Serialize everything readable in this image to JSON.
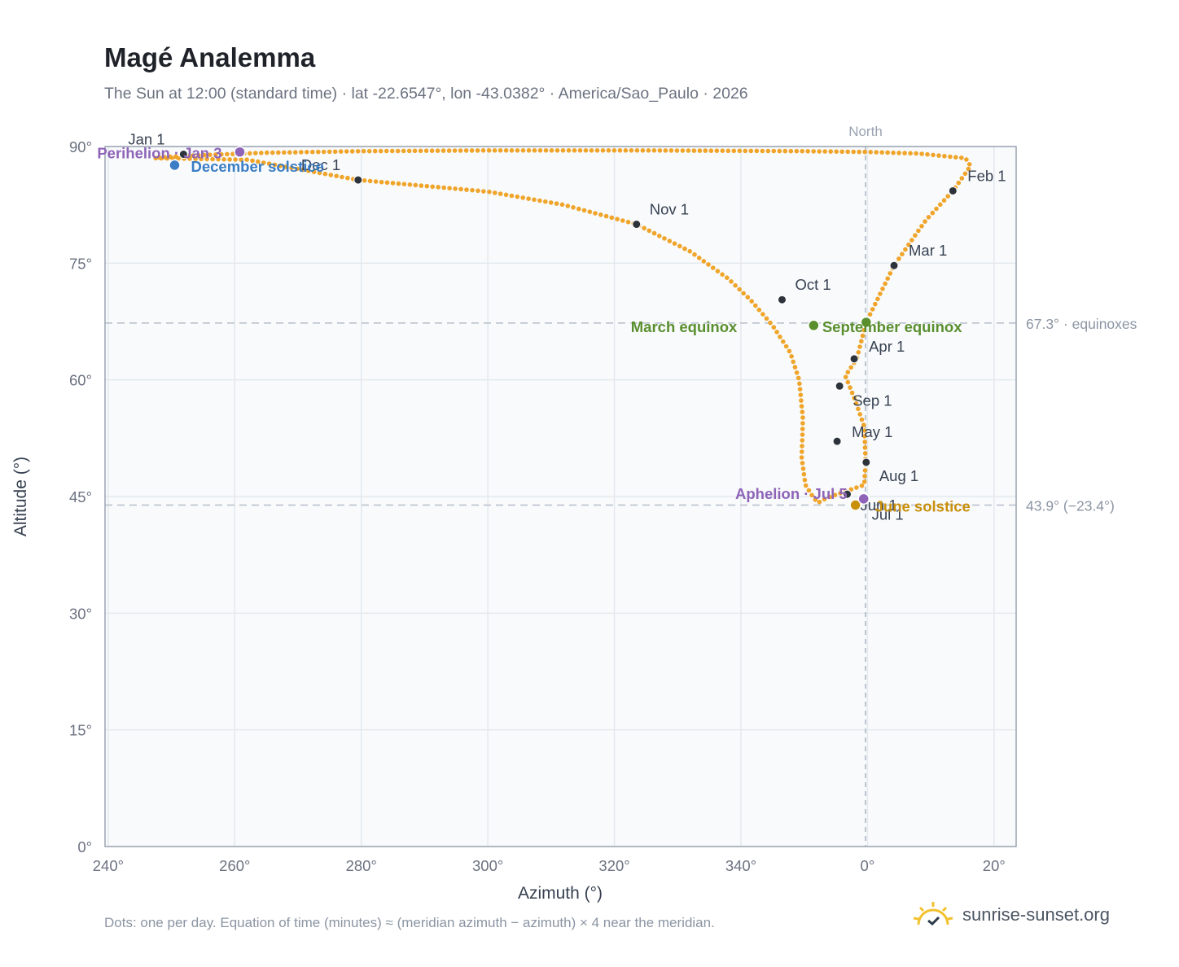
{
  "header": {
    "title": "Magé Analemma",
    "subtitle": "The Sun at 12:00 (standard time) · lat -22.6547°, lon -43.0382° · America/Sao_Paulo · 2026"
  },
  "footer": {
    "note": "Dots: one per day. Equation of time (minutes) ≈ (meridian azimuth − azimuth) × 4 near the meridian.",
    "brand": "sunrise-sunset.org"
  },
  "colors": {
    "path": "#f0a52a",
    "month_dot": "#2d333b",
    "equinox": "#5a8f2e",
    "june_solstice": "#c9900c",
    "december_solstice": "#3a7dc4",
    "apsis": "#8e63b8",
    "grid": "#e3e9ee",
    "axis": "#9aa4b2",
    "plot_bg": "#f8fafc",
    "text": "#374151"
  },
  "chart_data": {
    "type": "scatter",
    "xlabel": "Azimuth (°)",
    "ylabel": "Altitude (°)",
    "xlim": [
      239.5,
      23.5
    ],
    "ylim": [
      0,
      90
    ],
    "x_ticks": [
      "240°",
      "260°",
      "280°",
      "300°",
      "320°",
      "340°",
      "0°",
      "20°"
    ],
    "y_ticks": [
      "0°",
      "15°",
      "30°",
      "45°",
      "60°",
      "75°",
      "90°"
    ],
    "grid": true,
    "north_label": "North",
    "reference_lines": [
      {
        "altitude": 67.3,
        "label": "67.3° · equinoxes"
      },
      {
        "altitude": 43.9,
        "label": "43.9° (−23.4°)"
      }
    ],
    "analemma_path": [
      [
        247.5,
        88.5
      ],
      [
        262,
        88.3
      ],
      [
        279.5,
        85.7
      ],
      [
        300,
        84.2
      ],
      [
        312,
        82.5
      ],
      [
        323.5,
        80.0
      ],
      [
        332,
        76.5
      ],
      [
        338,
        73.0
      ],
      [
        341.5,
        70.3
      ],
      [
        345,
        67.0
      ],
      [
        347.8,
        63.5
      ],
      [
        349.2,
        60.0
      ],
      [
        349.8,
        55.0
      ],
      [
        349.6,
        50.0
      ],
      [
        350.2,
        46.5
      ],
      [
        351.5,
        44.8
      ],
      [
        352.2,
        44.2
      ],
      [
        353.5,
        44.8
      ],
      [
        359.5,
        46.5
      ],
      [
        359.7,
        49.5
      ],
      [
        359.5,
        54.0
      ],
      [
        358,
        57.5
      ],
      [
        356.5,
        60.5
      ],
      [
        358.3,
        62.7
      ],
      [
        359.8,
        67.4
      ],
      [
        4.2,
        74.7
      ],
      [
        9.2,
        80.5
      ],
      [
        13.5,
        84.3
      ],
      [
        16.3,
        87.5
      ],
      [
        15.5,
        88.5
      ],
      [
        8,
        89.1
      ],
      [
        0,
        89.3
      ],
      [
        -10,
        89.4
      ],
      [
        -35,
        89.5
      ],
      [
        -60,
        89.5
      ],
      [
        -80,
        89.4
      ],
      [
        -95,
        89.2
      ],
      [
        -105,
        88.9
      ],
      [
        -112,
        88.6
      ]
    ],
    "month_points": [
      {
        "label": "Jan 1",
        "az": 251.9,
        "alt": 89.0
      },
      {
        "label": "Feb 1",
        "az": 13.5,
        "alt": 84.3
      },
      {
        "label": "Mar 1",
        "az": 4.2,
        "alt": 74.7
      },
      {
        "label": "Apr 1",
        "az": 357.9,
        "alt": 62.7
      },
      {
        "label": "May 1",
        "az": 355.2,
        "alt": 52.1
      },
      {
        "label": "Jun 1",
        "az": 356.8,
        "alt": 45.3
      },
      {
        "label": "Jul 1",
        "az": 358.1,
        "alt": 43.9
      },
      {
        "label": "Aug 1",
        "az": 359.8,
        "alt": 49.4
      },
      {
        "label": "Sep 1",
        "az": 355.6,
        "alt": 59.2
      },
      {
        "label": "Oct 1",
        "az": 346.5,
        "alt": 70.3
      },
      {
        "label": "Nov 1",
        "az": 323.5,
        "alt": 80.0
      },
      {
        "label": "Dec 1",
        "az": 279.5,
        "alt": 85.7
      }
    ],
    "events": [
      {
        "label": "March equinox",
        "az": 351.5,
        "alt": 67.0,
        "kind": "equinox"
      },
      {
        "label": "September equinox",
        "az": 359.8,
        "alt": 67.4,
        "kind": "equinox"
      },
      {
        "label": "June solstice",
        "az": 358.1,
        "alt": 43.9,
        "kind": "june_solstice"
      },
      {
        "label": "December solstice",
        "az": 250.5,
        "alt": 87.6,
        "kind": "december_solstice"
      },
      {
        "label": "Perihelion · Jan 3",
        "az": 260.8,
        "alt": 89.3,
        "kind": "apsis"
      },
      {
        "label": "Aphelion · Jul 5",
        "az": 359.4,
        "alt": 44.7,
        "kind": "apsis"
      }
    ]
  }
}
